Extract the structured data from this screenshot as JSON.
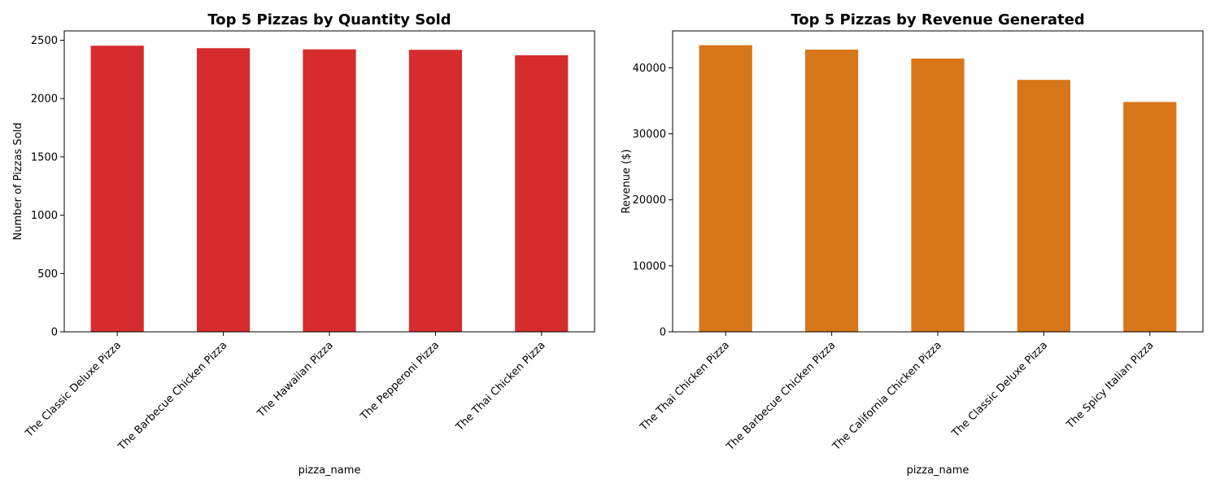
{
  "chart_data": [
    {
      "type": "bar",
      "title": "Top 5 Pizzas by Quantity Sold",
      "xlabel": "pizza_name",
      "ylabel": "Number of Pizzas Sold",
      "categories": [
        "The Classic Deluxe Pizza",
        "The Barbecue Chicken Pizza",
        "The Hawaiian Pizza",
        "The Pepperoni Pizza",
        "The Thai Chicken Pizza"
      ],
      "values": [
        2453,
        2432,
        2422,
        2418,
        2371
      ],
      "ylim": [
        0,
        2580
      ],
      "yticks": [
        0,
        500,
        1000,
        1500,
        2000,
        2500
      ],
      "color": "#d62c2e",
      "grid": false
    },
    {
      "type": "bar",
      "title": "Top 5 Pizzas by Revenue Generated",
      "xlabel": "pizza_name",
      "ylabel": "Revenue ($)",
      "categories": [
        "The Thai Chicken Pizza",
        "The Barbecue Chicken Pizza",
        "The California Chicken Pizza",
        "The Classic Deluxe Pizza",
        "The Spicy Italian Pizza"
      ],
      "values": [
        43434,
        42768,
        41410,
        38180,
        34831
      ],
      "ylim": [
        0,
        45600
      ],
      "yticks": [
        0,
        10000,
        20000,
        30000,
        40000
      ],
      "color": "#d67619",
      "grid": false
    }
  ]
}
